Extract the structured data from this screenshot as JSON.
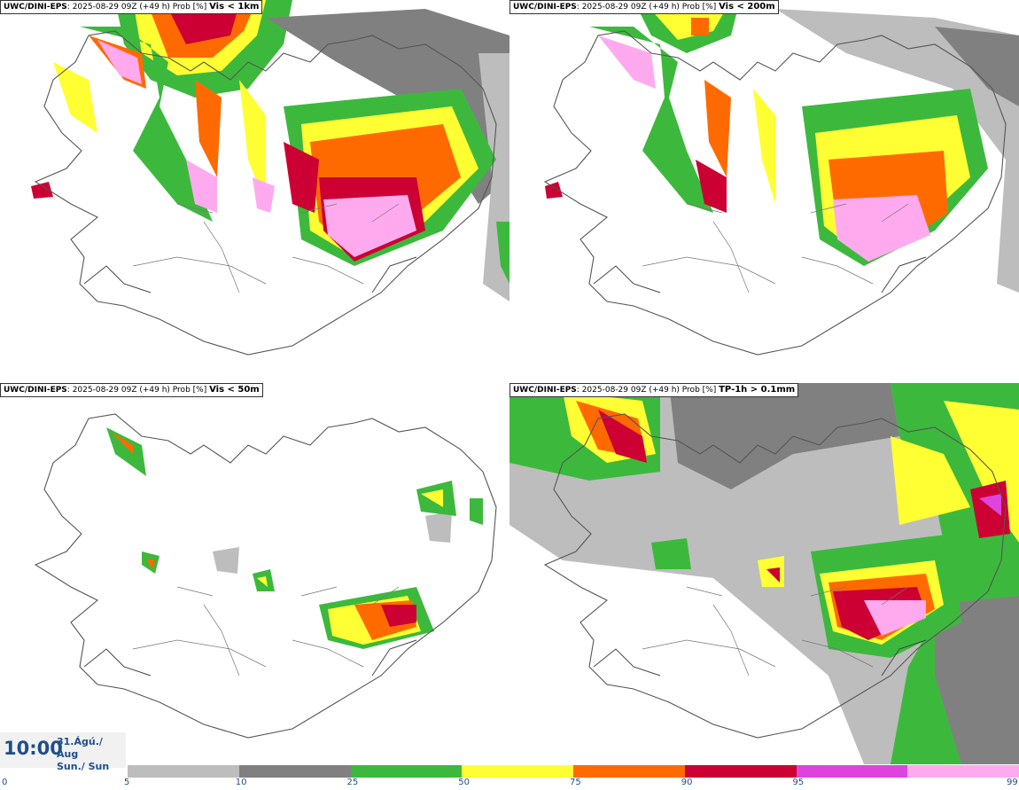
{
  "panels": [
    {
      "source": "UWC/DINI-EPS",
      "run": "2025-08-29 09Z (+49 h) Prob [%]",
      "threshold": "Vis < 1km"
    },
    {
      "source": "UWC/DINI-EPS",
      "run": "2025-08-29 09Z (+49 h) Prob [%]",
      "threshold": "Vis < 200m"
    },
    {
      "source": "UWC/DINI-EPS",
      "run": "2025-08-29 09Z (+49 h) Prob [%]",
      "threshold": "Vis < 50m"
    },
    {
      "source": "UWC/DINI-EPS",
      "run": "2025-08-29 09Z (+49 h) Prob [%]",
      "threshold": "TP-1h > 0.1mm"
    }
  ],
  "valid": {
    "time": "10:00",
    "date": "31.Ágú./ Aug",
    "day": "Sun./ Sun"
  },
  "legend": {
    "ticks": [
      "0",
      "5",
      "10",
      "25",
      "50",
      "75",
      "90",
      "95",
      "99"
    ],
    "colors": [
      "#bdbdbd",
      "#808080",
      "#3cb93c",
      "#ffff33",
      "#ff6a00",
      "#cc0033",
      "#dd44dd",
      "#ffaaee"
    ]
  }
}
